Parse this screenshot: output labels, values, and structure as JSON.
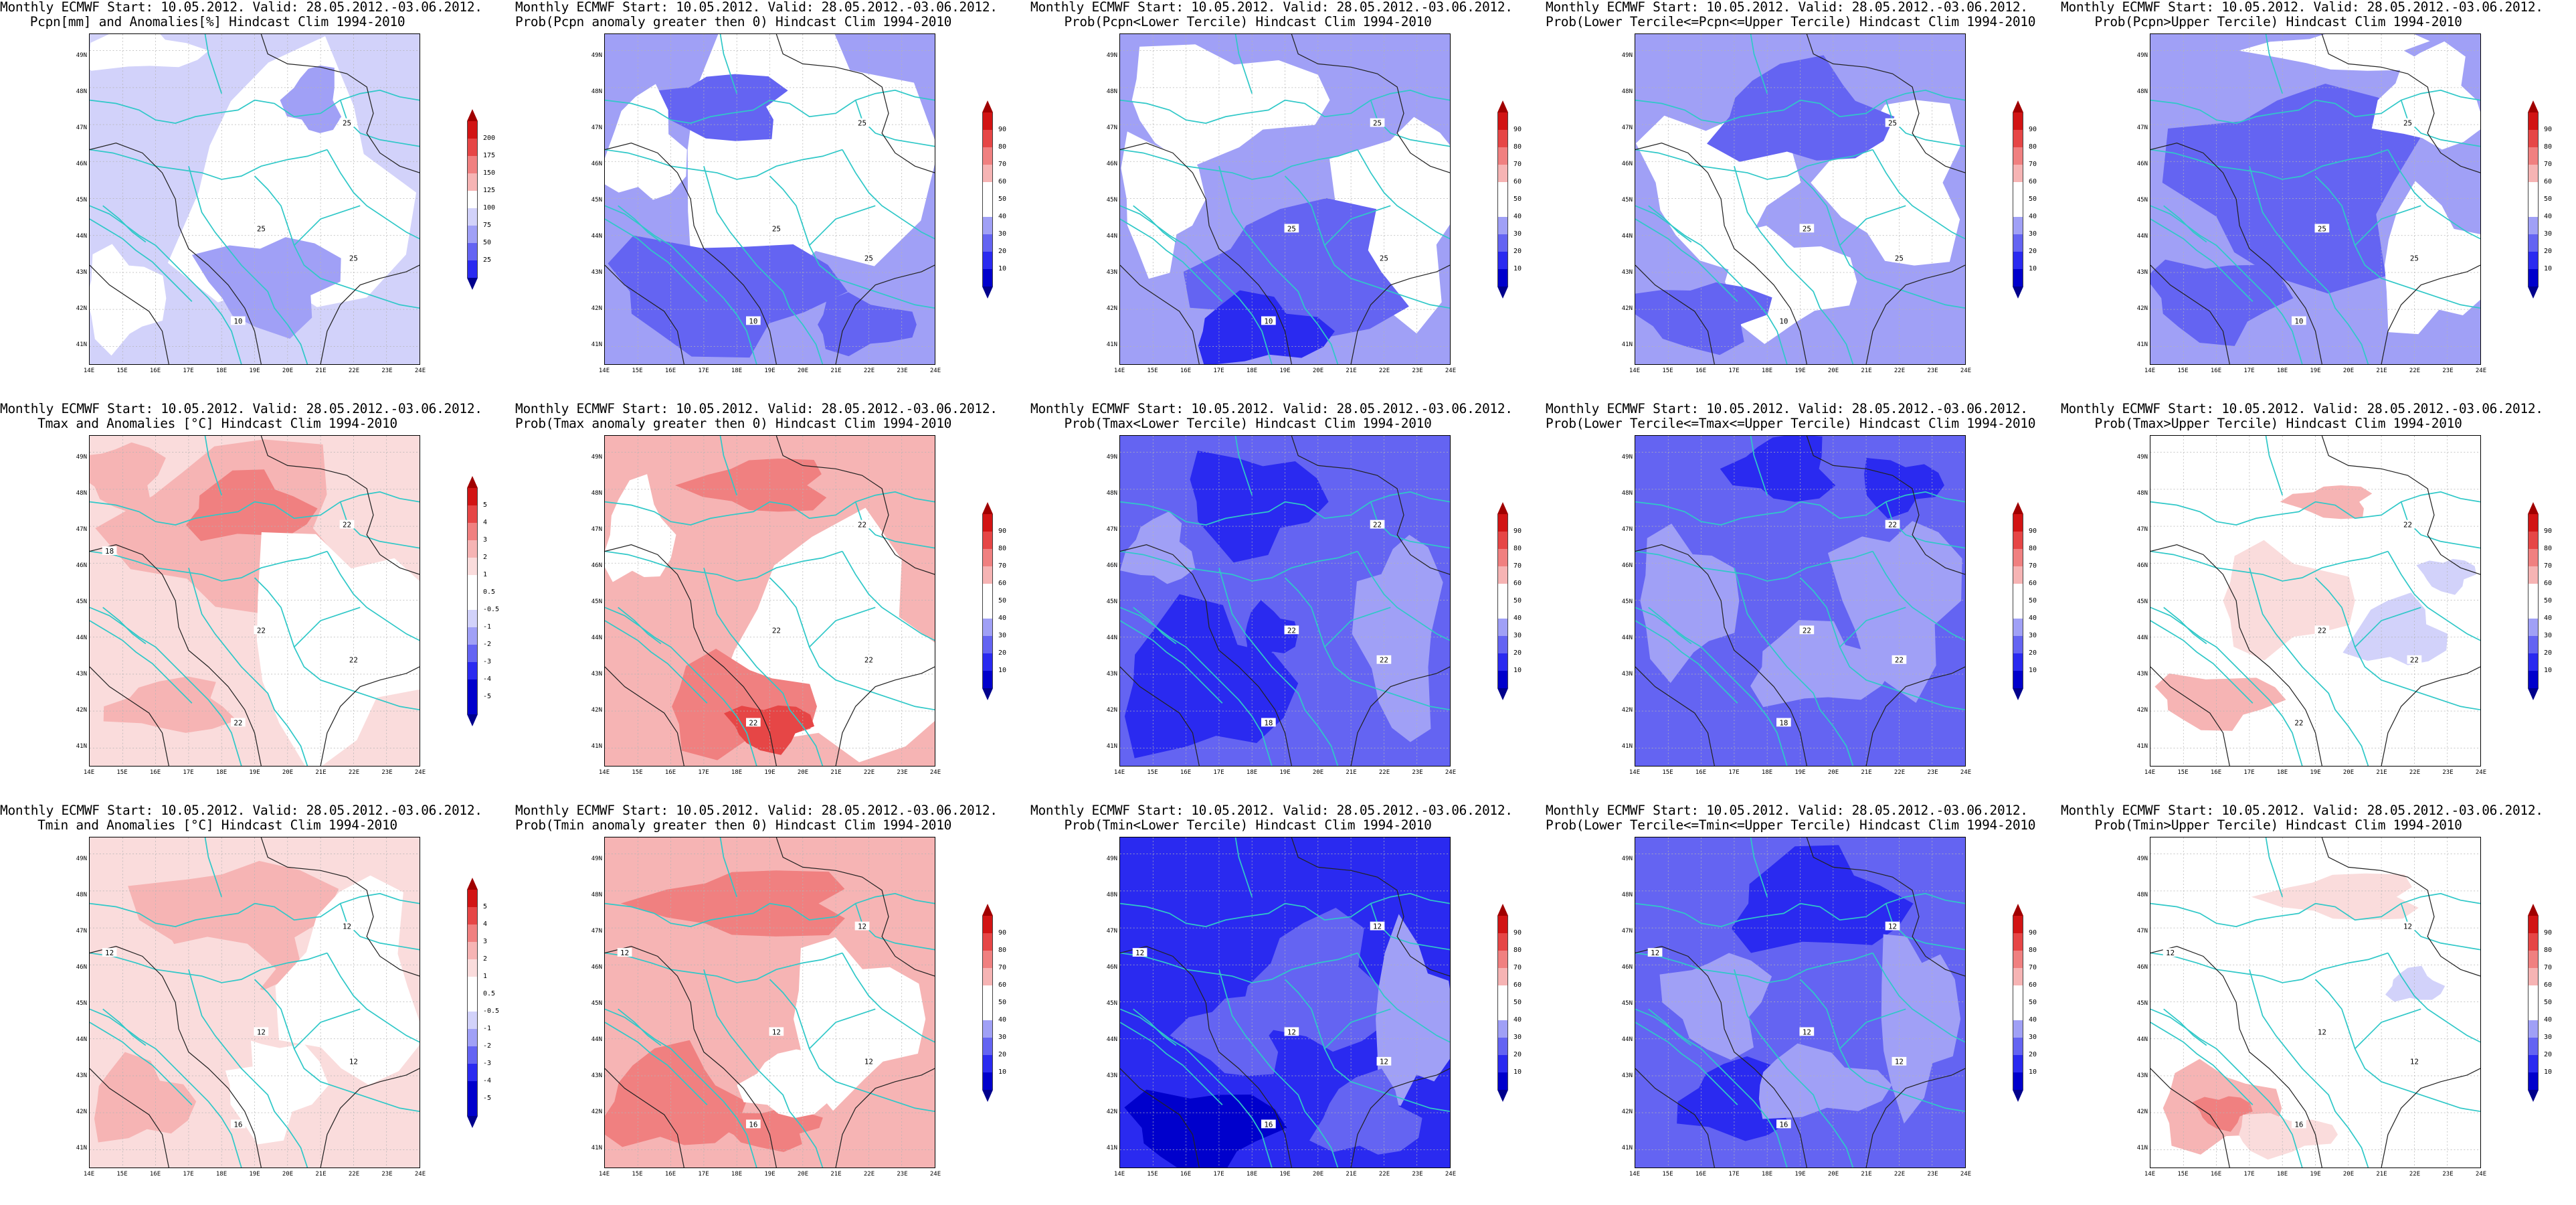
{
  "palette": {
    "b5": "#0000cc",
    "b4": "#2a2af0",
    "b3": "#6464f2",
    "b2": "#a0a0f6",
    "b1": "#d2d2fa",
    "w": "#ffffff",
    "r1": "#fadcdc",
    "r2": "#f6b4b4",
    "r3": "#f08080",
    "r4": "#e64646",
    "r5": "#d21414",
    "tipBlue": "#00008c",
    "tipRed": "#a00000",
    "coast": "#30c8c8",
    "contour": "#222222",
    "grid": "#b4b4b4"
  },
  "axes": {
    "yticks": [
      "49N",
      "48N",
      "47N",
      "46N",
      "45N",
      "44N",
      "43N",
      "42N",
      "41N"
    ],
    "xticks": [
      "14E",
      "15E",
      "16E",
      "17E",
      "18E",
      "19E",
      "20E",
      "21E",
      "22E",
      "23E",
      "24E"
    ]
  },
  "colorbars": {
    "precip": {
      "labels": [
        "200",
        "175",
        "150",
        "125",
        "100",
        "75",
        "50",
        "25"
      ],
      "colors": [
        "r5",
        "r4",
        "r3",
        "r2",
        "w",
        "b1",
        "b2",
        "b3",
        "b4"
      ],
      "tipTop": "tipRed",
      "tipBottom": "tipBlue"
    },
    "temp": {
      "labels": [
        "5",
        "4",
        "3",
        "2",
        "1",
        "0.5",
        "-0.5",
        "-1",
        "-2",
        "-3",
        "-4",
        "-5"
      ],
      "colors": [
        "r5",
        "r4",
        "r3",
        "r2",
        "r1",
        "w",
        "w",
        "b1",
        "b2",
        "b3",
        "b4",
        "b5",
        "b5"
      ],
      "tipTop": "tipRed",
      "tipBottom": "tipBlue"
    },
    "prob": {
      "labels": [
        "90",
        "80",
        "70",
        "60",
        "50",
        "40",
        "30",
        "20",
        "10"
      ],
      "colors": [
        "r5",
        "r4",
        "r3",
        "r2",
        "w",
        "w",
        "b2",
        "b3",
        "b4",
        "b5"
      ],
      "tipTop": "tipRed",
      "tipBottom": "tipBlue"
    }
  },
  "panels": [
    {
      "title": "Monthly ECMWF Start: 10.05.2012. Valid: 28.05.2012.-03.06.2012.\nPcpn[mm] and Anomalies[%] Hindcast Clim 1994-2010",
      "colorbar": "precip",
      "bg": "b1",
      "blobs": [
        [
          "w",
          0.62,
          0.48,
          0.33,
          0.38
        ],
        [
          "w",
          0.1,
          0.8,
          0.12,
          0.14
        ],
        [
          "b2",
          0.55,
          0.75,
          0.2,
          0.14
        ],
        [
          "b2",
          0.68,
          0.2,
          0.08,
          0.1
        ],
        [
          "w",
          0.15,
          0.05,
          0.18,
          0.06
        ]
      ],
      "contourLabels": [
        "25",
        "25",
        "25",
        "10"
      ]
    },
    {
      "title": "Monthly ECMWF Start: 10.05.2012. Valid: 28.05.2012.-03.06.2012.\nProb(Pcpn anomaly greater then 0) Hindcast Clim 1994-2010",
      "colorbar": "prob",
      "bg": "b2",
      "blobs": [
        [
          "w",
          0.58,
          0.35,
          0.38,
          0.45
        ],
        [
          "b3",
          0.35,
          0.78,
          0.33,
          0.17
        ],
        [
          "b3",
          0.35,
          0.22,
          0.2,
          0.1
        ],
        [
          "w",
          0.12,
          0.35,
          0.12,
          0.16
        ],
        [
          "b3",
          0.78,
          0.88,
          0.15,
          0.08
        ]
      ],
      "contourLabels": [
        "25",
        "25",
        "25",
        "10"
      ]
    },
    {
      "title": "Monthly ECMWF Start: 10.05.2012. Valid: 28.05.2012.-03.06.2012.\nProb(Pcpn<Lower Tercile) Hindcast Clim 1994-2010",
      "colorbar": "prob",
      "bg": "b2",
      "blobs": [
        [
          "w",
          0.3,
          0.2,
          0.3,
          0.16
        ],
        [
          "w",
          0.85,
          0.55,
          0.18,
          0.3
        ],
        [
          "b3",
          0.55,
          0.72,
          0.3,
          0.2
        ],
        [
          "b4",
          0.42,
          0.9,
          0.2,
          0.1
        ],
        [
          "w",
          0.12,
          0.5,
          0.12,
          0.2
        ]
      ],
      "contourLabels": [
        "25",
        "25",
        "25",
        "10"
      ]
    },
    {
      "title": "Monthly ECMWF Start: 10.05.2012. Valid: 28.05.2012.-03.06.2012.\nProb(Lower Tercile<=Pcpn<=Upper Tercile) Hindcast Clim 1994-2010",
      "colorbar": "prob",
      "bg": "b2",
      "blobs": [
        [
          "w",
          0.25,
          0.45,
          0.22,
          0.22
        ],
        [
          "w",
          0.8,
          0.45,
          0.2,
          0.25
        ],
        [
          "b3",
          0.5,
          0.25,
          0.25,
          0.15
        ],
        [
          "w",
          0.45,
          0.75,
          0.2,
          0.15
        ],
        [
          "b3",
          0.2,
          0.85,
          0.2,
          0.1
        ]
      ],
      "contourLabels": [
        "25",
        "25",
        "25",
        "10"
      ]
    },
    {
      "title": "Monthly ECMWF Start: 10.05.2012. Valid: 28.05.2012.-03.06.2012.\nProb(Pcpn>Upper Tercile) Hindcast Clim 1994-2010",
      "colorbar": "prob",
      "bg": "b2",
      "blobs": [
        [
          "b3",
          0.45,
          0.45,
          0.35,
          0.3
        ],
        [
          "w",
          0.85,
          0.2,
          0.15,
          0.15
        ],
        [
          "w",
          0.85,
          0.7,
          0.16,
          0.2
        ],
        [
          "b3",
          0.2,
          0.8,
          0.2,
          0.12
        ],
        [
          "w",
          0.6,
          0.05,
          0.25,
          0.06
        ]
      ],
      "contourLabels": [
        "25",
        "25",
        "25",
        "10"
      ]
    },
    {
      "title": "Monthly ECMWF Start: 10.05.2012. Valid: 28.05.2012.-03.06.2012.\nTmax and Anomalies [°C] Hindcast Clim 1994-2010",
      "colorbar": "temp",
      "bg": "r1",
      "blobs": [
        [
          "r2",
          0.45,
          0.28,
          0.33,
          0.26
        ],
        [
          "r3",
          0.48,
          0.22,
          0.18,
          0.1
        ],
        [
          "w",
          0.75,
          0.62,
          0.28,
          0.32
        ],
        [
          "r2",
          0.1,
          0.12,
          0.12,
          0.1
        ],
        [
          "r2",
          0.25,
          0.82,
          0.18,
          0.08
        ]
      ],
      "contourLabels": [
        "22",
        "22",
        "22",
        "22",
        "18"
      ]
    },
    {
      "title": "Monthly ECMWF Start: 10.05.2012. Valid: 28.05.2012.-03.06.2012.\nProb(Tmax anomaly greater then 0) Hindcast Clim 1994-2010",
      "colorbar": "prob",
      "bg": "r2",
      "blobs": [
        [
          "w",
          0.7,
          0.65,
          0.32,
          0.35
        ],
        [
          "r3",
          0.4,
          0.82,
          0.22,
          0.14
        ],
        [
          "r4",
          0.5,
          0.88,
          0.12,
          0.07
        ],
        [
          "r3",
          0.48,
          0.15,
          0.2,
          0.08
        ],
        [
          "w",
          0.1,
          0.3,
          0.1,
          0.15
        ]
      ],
      "contourLabels": [
        "22",
        "22",
        "22",
        "22"
      ]
    },
    {
      "title": "Monthly ECMWF Start: 10.05.2012. Valid: 28.05.2012.-03.06.2012.\nProb(Tmax<Lower Tercile) Hindcast Clim 1994-2010",
      "colorbar": "prob",
      "bg": "b3",
      "blobs": [
        [
          "b4",
          0.25,
          0.75,
          0.25,
          0.22
        ],
        [
          "b4",
          0.4,
          0.2,
          0.2,
          0.15
        ],
        [
          "b2",
          0.85,
          0.6,
          0.12,
          0.3
        ],
        [
          "b2",
          0.12,
          0.35,
          0.1,
          0.1
        ],
        [
          "b4",
          0.45,
          0.6,
          0.08,
          0.08
        ]
      ],
      "contourLabels": [
        "22",
        "22",
        "22",
        "18"
      ]
    },
    {
      "title": "Monthly ECMWF Start: 10.05.2012. Valid: 28.05.2012.-03.06.2012.\nProb(Lower Tercile<=Tmax<=Upper Tercile) Hindcast Clim 1994-2010",
      "colorbar": "prob",
      "bg": "b3",
      "blobs": [
        [
          "b2",
          0.15,
          0.5,
          0.15,
          0.2
        ],
        [
          "b2",
          0.8,
          0.5,
          0.18,
          0.25
        ],
        [
          "b4",
          0.45,
          0.1,
          0.15,
          0.1
        ],
        [
          "b2",
          0.55,
          0.7,
          0.2,
          0.12
        ],
        [
          "b4",
          0.8,
          0.15,
          0.12,
          0.08
        ]
      ],
      "contourLabels": [
        "22",
        "22",
        "22",
        "18"
      ]
    },
    {
      "title": "Monthly ECMWF Start: 10.05.2012. Valid: 28.05.2012.-03.06.2012.\nProb(Tmax>Upper Tercile) Hindcast Clim 1994-2010",
      "colorbar": "prob",
      "bg": "w",
      "blobs": [
        [
          "r2",
          0.2,
          0.8,
          0.18,
          0.08
        ],
        [
          "r2",
          0.55,
          0.2,
          0.12,
          0.05
        ],
        [
          "b1",
          0.75,
          0.6,
          0.14,
          0.1
        ],
        [
          "r1",
          0.4,
          0.5,
          0.2,
          0.15
        ],
        [
          "b1",
          0.9,
          0.42,
          0.08,
          0.05
        ]
      ],
      "contourLabels": [
        "22",
        "22",
        "22",
        "22"
      ]
    },
    {
      "title": "Monthly ECMWF Start: 10.05.2012. Valid: 28.05.2012.-03.06.2012.\nTmin and Anomalies [°C] Hindcast Clim 1994-2010",
      "colorbar": "temp",
      "bg": "r1",
      "blobs": [
        [
          "r2",
          0.45,
          0.25,
          0.28,
          0.18
        ],
        [
          "w",
          0.8,
          0.45,
          0.2,
          0.3
        ],
        [
          "r2",
          0.15,
          0.8,
          0.15,
          0.12
        ],
        [
          "w",
          0.55,
          0.75,
          0.15,
          0.15
        ],
        [
          "r1",
          0.3,
          0.5,
          0.25,
          0.2
        ]
      ],
      "contourLabels": [
        "12",
        "12",
        "12",
        "16",
        "12"
      ]
    },
    {
      "title": "Monthly ECMWF Start: 10.05.2012. Valid: 28.05.2012.-03.06.2012.\nProb(Tmin anomaly greater then 0) Hindcast Clim 1994-2010",
      "colorbar": "prob",
      "bg": "r2",
      "blobs": [
        [
          "r3",
          0.45,
          0.2,
          0.3,
          0.1
        ],
        [
          "r3",
          0.2,
          0.8,
          0.2,
          0.15
        ],
        [
          "w",
          0.75,
          0.55,
          0.2,
          0.22
        ],
        [
          "r3",
          0.5,
          0.88,
          0.15,
          0.06
        ],
        [
          "w",
          0.55,
          0.75,
          0.12,
          0.1
        ]
      ],
      "contourLabels": [
        "12",
        "12",
        "12",
        "16",
        "12"
      ]
    },
    {
      "title": "Monthly ECMWF Start: 10.05.2012. Valid: 28.05.2012.-03.06.2012.\nProb(Tmin<Lower Tercile) Hindcast Clim 1994-2010",
      "colorbar": "prob",
      "bg": "b4",
      "blobs": [
        [
          "b3",
          0.6,
          0.45,
          0.2,
          0.2
        ],
        [
          "b2",
          0.88,
          0.55,
          0.12,
          0.25
        ],
        [
          "b5",
          0.25,
          0.88,
          0.22,
          0.12
        ],
        [
          "b3",
          0.35,
          0.6,
          0.15,
          0.12
        ],
        [
          "b3",
          0.75,
          0.85,
          0.15,
          0.12
        ]
      ],
      "contourLabels": [
        "12",
        "12",
        "12",
        "16",
        "12"
      ]
    },
    {
      "title": "Monthly ECMWF Start: 10.05.2012. Valid: 28.05.2012.-03.06.2012.\nProb(Lower Tercile<=Tmin<=Upper Tercile) Hindcast Clim 1994-2010",
      "colorbar": "prob",
      "bg": "b3",
      "blobs": [
        [
          "b4",
          0.55,
          0.2,
          0.25,
          0.15
        ],
        [
          "b2",
          0.85,
          0.55,
          0.12,
          0.25
        ],
        [
          "b2",
          0.25,
          0.5,
          0.15,
          0.15
        ],
        [
          "b4",
          0.3,
          0.8,
          0.15,
          0.12
        ],
        [
          "b2",
          0.55,
          0.75,
          0.2,
          0.1
        ]
      ],
      "contourLabels": [
        "12",
        "12",
        "12",
        "16",
        "12"
      ]
    },
    {
      "title": "Monthly ECMWF Start: 10.05.2012. Valid: 28.05.2012.-03.06.2012.\nProb(Tmin>Upper Tercile) Hindcast Clim 1994-2010",
      "colorbar": "prob",
      "bg": "w",
      "blobs": [
        [
          "r2",
          0.2,
          0.82,
          0.18,
          0.12
        ],
        [
          "r3",
          0.22,
          0.83,
          0.08,
          0.05
        ],
        [
          "r1",
          0.6,
          0.18,
          0.22,
          0.07
        ],
        [
          "b1",
          0.8,
          0.45,
          0.08,
          0.05
        ],
        [
          "r1",
          0.4,
          0.9,
          0.15,
          0.06
        ]
      ],
      "contourLabels": [
        "12",
        "12",
        "12",
        "16",
        "12"
      ]
    }
  ]
}
